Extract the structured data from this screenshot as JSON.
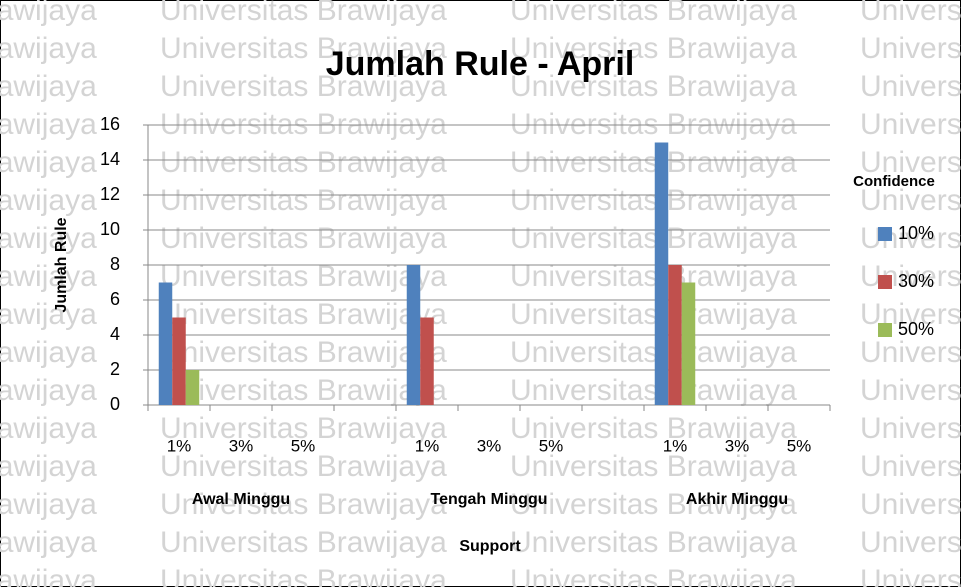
{
  "chart_data": {
    "type": "bar",
    "title": "Jumlah Rule - April",
    "watermark": "Universitas Brawijaya",
    "ylabel": "Jumlah Rule",
    "xlabel": "Support",
    "legend_title": "Confidence",
    "legend": "right",
    "grid": true,
    "categories": [
      "1%",
      "3%",
      "5%",
      null,
      "1%",
      "3%",
      "5%",
      null,
      "1%",
      "3%",
      "5%"
    ],
    "groups": [
      "Awal Minggu",
      "Tengah Minggu",
      "Akhir Minggu"
    ],
    "series": [
      {
        "name": "10%",
        "color": "#4f81bd",
        "values": [
          7,
          0,
          0,
          null,
          8,
          0,
          0,
          null,
          15,
          0,
          0
        ]
      },
      {
        "name": "30%",
        "color": "#c0504d",
        "values": [
          5,
          0,
          0,
          null,
          5,
          0,
          0,
          null,
          8,
          0,
          0
        ]
      },
      {
        "name": "50%",
        "color": "#9bbb59",
        "values": [
          2,
          0,
          0,
          null,
          0,
          0,
          0,
          null,
          7,
          0,
          0
        ]
      }
    ],
    "ylim": [
      0,
      16
    ],
    "yticks": [
      0,
      2,
      4,
      6,
      8,
      10,
      12,
      14,
      16
    ]
  }
}
